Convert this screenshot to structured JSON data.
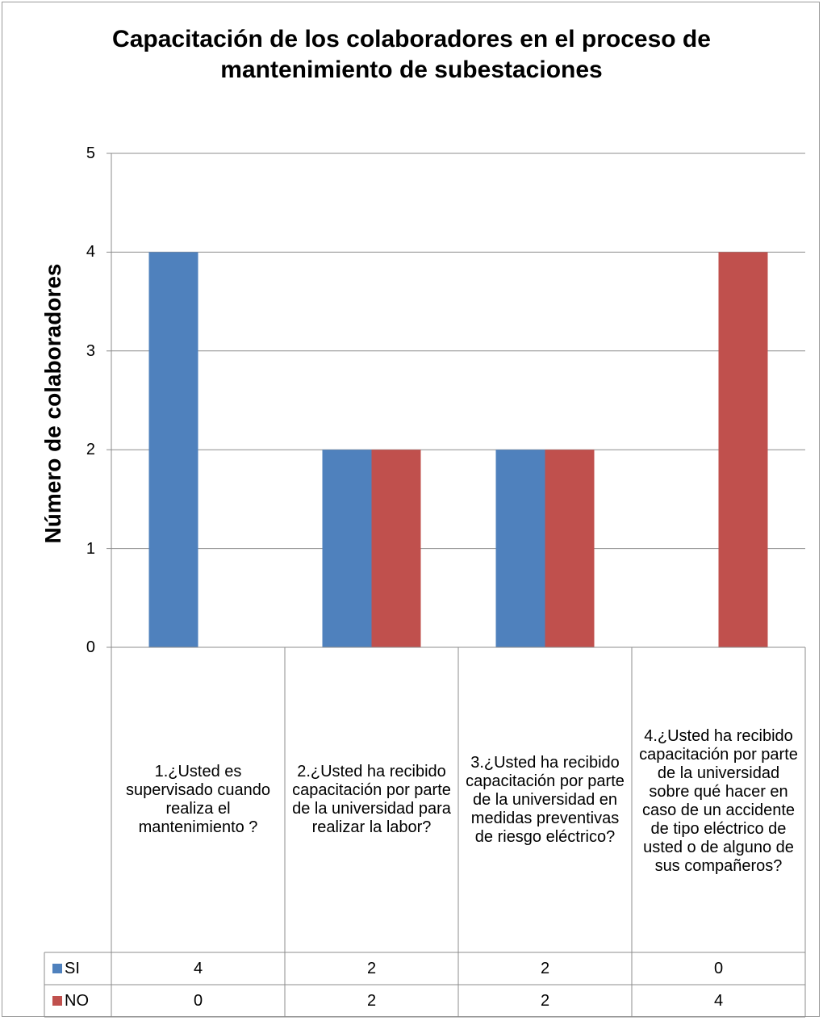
{
  "chart_data": {
    "type": "bar",
    "title": "Capacitación de los colaboradores en el proceso de mantenimiento de subestaciones",
    "ylabel": "Número de colaboradores",
    "xlabel": "",
    "ylim": [
      0,
      5
    ],
    "yticks": [
      "0",
      "1",
      "2",
      "3",
      "4",
      "5"
    ],
    "grid": true,
    "legend": "data-table",
    "categories": [
      "1.¿Usted es supervisado cuando realiza el mantenimiento ?",
      "2.¿Usted ha recibido capacitación por parte de la universidad para realizar la labor?",
      "3.¿Usted ha recibido capacitación por parte de la universidad en medidas preventivas de riesgo eléctrico?",
      "4.¿Usted ha recibido capacitación por parte de la universidad sobre  qué hacer en caso de un accidente de tipo eléctrico de usted o de alguno de sus compañeros?"
    ],
    "series": [
      {
        "name": "SI",
        "color": "#4f81bd",
        "values": [
          4,
          2,
          2,
          0
        ],
        "labels": [
          "4",
          "2",
          "2",
          "0"
        ]
      },
      {
        "name": "NO",
        "color": "#c0504d",
        "values": [
          0,
          2,
          2,
          4
        ],
        "labels": [
          "0",
          "2",
          "2",
          "4"
        ]
      }
    ]
  }
}
